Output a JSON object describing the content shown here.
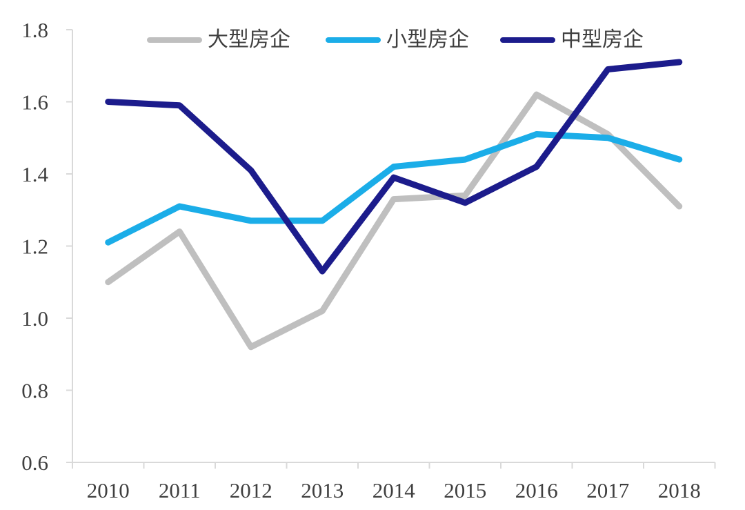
{
  "chart_data": {
    "type": "line",
    "title": "",
    "xlabel": "",
    "ylabel": "",
    "categories": [
      "2010",
      "2011",
      "2012",
      "2013",
      "2014",
      "2015",
      "2016",
      "2017",
      "2018"
    ],
    "series": [
      {
        "name": "大型房企",
        "color": "#BFBFBF",
        "values": [
          1.1,
          1.24,
          0.92,
          1.02,
          1.33,
          1.34,
          1.62,
          1.51,
          1.31
        ]
      },
      {
        "name": "小型房企",
        "color": "#1BADE8",
        "values": [
          1.21,
          1.31,
          1.27,
          1.27,
          1.42,
          1.44,
          1.51,
          1.5,
          1.44
        ]
      },
      {
        "name": "中型房企",
        "color": "#1C1C8C",
        "values": [
          1.6,
          1.59,
          1.41,
          1.13,
          1.39,
          1.32,
          1.42,
          1.69,
          1.71
        ]
      }
    ],
    "ylim": [
      0.6,
      1.8
    ],
    "ytick_labels": [
      "0.6",
      "0.8",
      "1.0",
      "1.2",
      "1.4",
      "1.6",
      "1.8"
    ],
    "grid": false,
    "legend_position": "top",
    "axis_color": "#D9D9D9",
    "tick_label_color": "#3F3F3F",
    "line_width": 9
  }
}
